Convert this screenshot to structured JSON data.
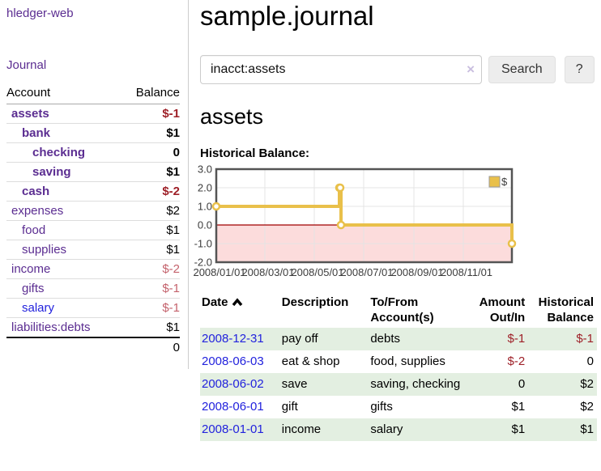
{
  "app": {
    "brand": "hledger-web"
  },
  "colors": {
    "purple": "#5b2d91",
    "blue": "#2222dd",
    "neg_strong": "#9e2028",
    "neg_soft": "#c4626c",
    "stripe": "#e3efe1",
    "gold": "#e9c04a",
    "pink": "#fcdcdc",
    "zero_line": "#a00000",
    "chart_border": "#545454"
  },
  "sidebar": {
    "nav": {
      "journal": "Journal"
    },
    "accounts": {
      "headers": {
        "account": "Account",
        "balance": "Balance"
      },
      "rows": [
        {
          "account": "assets",
          "indent": 1,
          "bold": true,
          "balance": "$-1",
          "balance_style": "neg-strong",
          "link_color": "purple"
        },
        {
          "account": "bank",
          "indent": 2,
          "bold": true,
          "balance": "$1",
          "balance_style": "pos",
          "link_color": "purple"
        },
        {
          "account": "checking",
          "indent": 3,
          "bold": true,
          "balance": "0",
          "balance_style": "pos",
          "link_color": "purple"
        },
        {
          "account": "saving",
          "indent": 3,
          "bold": true,
          "balance": "$1",
          "balance_style": "pos",
          "link_color": "purple"
        },
        {
          "account": "cash",
          "indent": 2,
          "bold": true,
          "balance": "$-2",
          "balance_style": "neg-strong",
          "link_color": "purple"
        },
        {
          "account": "expenses",
          "indent": 1,
          "bold": false,
          "balance": "$2",
          "balance_style": "pos",
          "link_color": "purple"
        },
        {
          "account": "food",
          "indent": 2,
          "bold": false,
          "balance": "$1",
          "balance_style": "pos",
          "link_color": "purple"
        },
        {
          "account": "supplies",
          "indent": 2,
          "bold": false,
          "balance": "$1",
          "balance_style": "pos",
          "link_color": "purple"
        },
        {
          "account": "income",
          "indent": 1,
          "bold": false,
          "balance": "$-2",
          "balance_style": "neg-soft",
          "link_color": "purple"
        },
        {
          "account": "gifts",
          "indent": 2,
          "bold": false,
          "balance": "$-1",
          "balance_style": "neg-soft",
          "link_color": "purple"
        },
        {
          "account": "salary",
          "indent": 2,
          "bold": false,
          "balance": "$-1",
          "balance_style": "neg-soft",
          "link_color": "blue"
        },
        {
          "account": "liabilities:debts",
          "indent": 1,
          "bold": false,
          "balance": "$1",
          "balance_style": "pos",
          "link_color": "purple"
        }
      ],
      "total": "0"
    }
  },
  "main": {
    "title": "sample.journal",
    "search": {
      "value": "inacct:assets",
      "clear_icon": "×",
      "search_button": "Search",
      "help_button": "?"
    },
    "account_heading": "assets",
    "chart_heading": "Historical Balance:"
  },
  "chart_data": {
    "type": "line",
    "title": "Historical Balance:",
    "step": true,
    "series": [
      {
        "name": "$",
        "color": "#e9c04a",
        "points": [
          {
            "date": "2008-01-01",
            "day": 0,
            "value": 1
          },
          {
            "date": "2008-06-01",
            "day": 152,
            "value": 2
          },
          {
            "date": "2008-06-02",
            "day": 153,
            "value": 2
          },
          {
            "date": "2008-06-03",
            "day": 154,
            "value": 0
          },
          {
            "date": "2008-12-31",
            "day": 365,
            "value": -1
          }
        ]
      }
    ],
    "ylim": [
      -2,
      3
    ],
    "yticks": [
      "3.0",
      "2.0",
      "1.0",
      "0.0",
      "-1.0",
      "-2.0"
    ],
    "xlim_days": [
      0,
      365
    ],
    "xticks": [
      {
        "label": "2008/01/01",
        "day": 0
      },
      {
        "label": "2008/03/01",
        "day": 60
      },
      {
        "label": "2008/05/01",
        "day": 121
      },
      {
        "label": "2008/07/01",
        "day": 182
      },
      {
        "label": "2008/09/01",
        "day": 244
      },
      {
        "label": "2008/11/01",
        "day": 305
      }
    ],
    "negative_region": {
      "from": -2,
      "to": 0,
      "fill": "#fcdcdc",
      "line_color": "#a00000"
    },
    "legend": {
      "label": "$",
      "position": "top-right"
    },
    "grid": true
  },
  "transactions": {
    "headers": [
      {
        "label": "Date",
        "align": "left",
        "sorted": "asc"
      },
      {
        "label": "Description",
        "align": "left"
      },
      {
        "label": "To/From Account(s)",
        "align": "left"
      },
      {
        "label": "Amount Out/In",
        "align": "right"
      },
      {
        "label": "Historical Balance",
        "align": "right"
      }
    ],
    "rows": [
      {
        "date": "2008-12-31",
        "description": "pay off",
        "accounts": "debts",
        "amount": "$-1",
        "amount_neg": true,
        "balance": "$-1",
        "balance_neg": true
      },
      {
        "date": "2008-06-03",
        "description": "eat & shop",
        "accounts": "food, supplies",
        "amount": "$-2",
        "amount_neg": true,
        "balance": "0",
        "balance_neg": false
      },
      {
        "date": "2008-06-02",
        "description": "save",
        "accounts": "saving, checking",
        "amount": "0",
        "amount_neg": false,
        "balance": "$2",
        "balance_neg": false
      },
      {
        "date": "2008-06-01",
        "description": "gift",
        "accounts": "gifts",
        "amount": "$1",
        "amount_neg": false,
        "balance": "$2",
        "balance_neg": false
      },
      {
        "date": "2008-01-01",
        "description": "income",
        "accounts": "salary",
        "amount": "$1",
        "amount_neg": false,
        "balance": "$1",
        "balance_neg": false
      }
    ]
  }
}
